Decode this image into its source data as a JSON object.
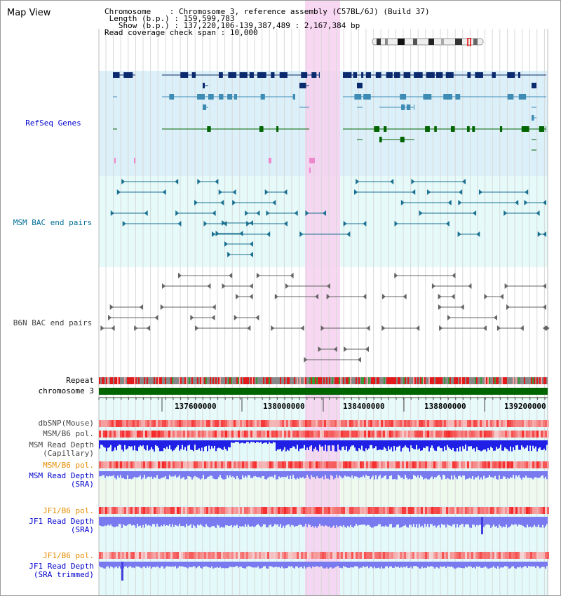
{
  "title": "Map View",
  "info": {
    "chromosome_label": "Chromosome",
    "chromosome_value": "Chromosome 3, reference assembly (C57BL/6J) (Build 37)",
    "length_label": "Length (b.p.)",
    "length_value": "159,599,783",
    "show_label": "Show (b.p.)",
    "show_value": "137,220,106-139,387,489 : 2,167,384 bp",
    "coverage_label": "Read coverage check span",
    "coverage_value": "10,000"
  },
  "tracks": {
    "refseq": "RefSeq Genes",
    "msm_bac": "MSM BAC end pairs",
    "b6n_bac": "B6N BAC end pairs",
    "repeat": "Repeat",
    "chromosome": "chromosome 3",
    "dbsnp": "dbSNP(Mouse)",
    "msm_b6_pol_1": "MSM/B6 pol.",
    "msm_read_depth_cap_1": "MSM Read Depth",
    "msm_read_depth_cap_2": "(Capillary)",
    "msm_b6_pol_2": "MSM/B6 pol.",
    "msm_read_depth_sra_1": "MSM Read Depth",
    "msm_read_depth_sra_2": "(SRA)",
    "jf1_b6_pol_1": "JF1/B6 pol.",
    "jf1_read_depth_sra_1": "JF1 Read Depth",
    "jf1_read_depth_sra_2": "(SRA)",
    "jf1_b6_pol_2": "JF1/B6 pol.",
    "jf1_read_depth_trim_1": "JF1 Read Depth",
    "jf1_read_depth_trim_2": "(SRA trimmed)"
  },
  "axis": {
    "ticks": [
      "137600000",
      "138000000",
      "138400000",
      "138800000",
      "139200000"
    ]
  },
  "colors": {
    "refseq_bg": "#dcf0fa",
    "msm_bg": "#e6fafa",
    "highlight": "#f7d0f0",
    "label_blue": "#0000cc",
    "label_teal": "#006e96",
    "label_gray": "#444444",
    "label_orange": "#e68c00",
    "refseq_dark": "#0b2a6e",
    "refseq_mid": "#3e8cb4",
    "refseq_green": "#006400",
    "bac_teal": "#1a7090",
    "bac_gray": "#646464",
    "chrom_green": "#006400",
    "depth_blue": "#1f1fe6",
    "depth_light": "#7a7af0"
  }
}
